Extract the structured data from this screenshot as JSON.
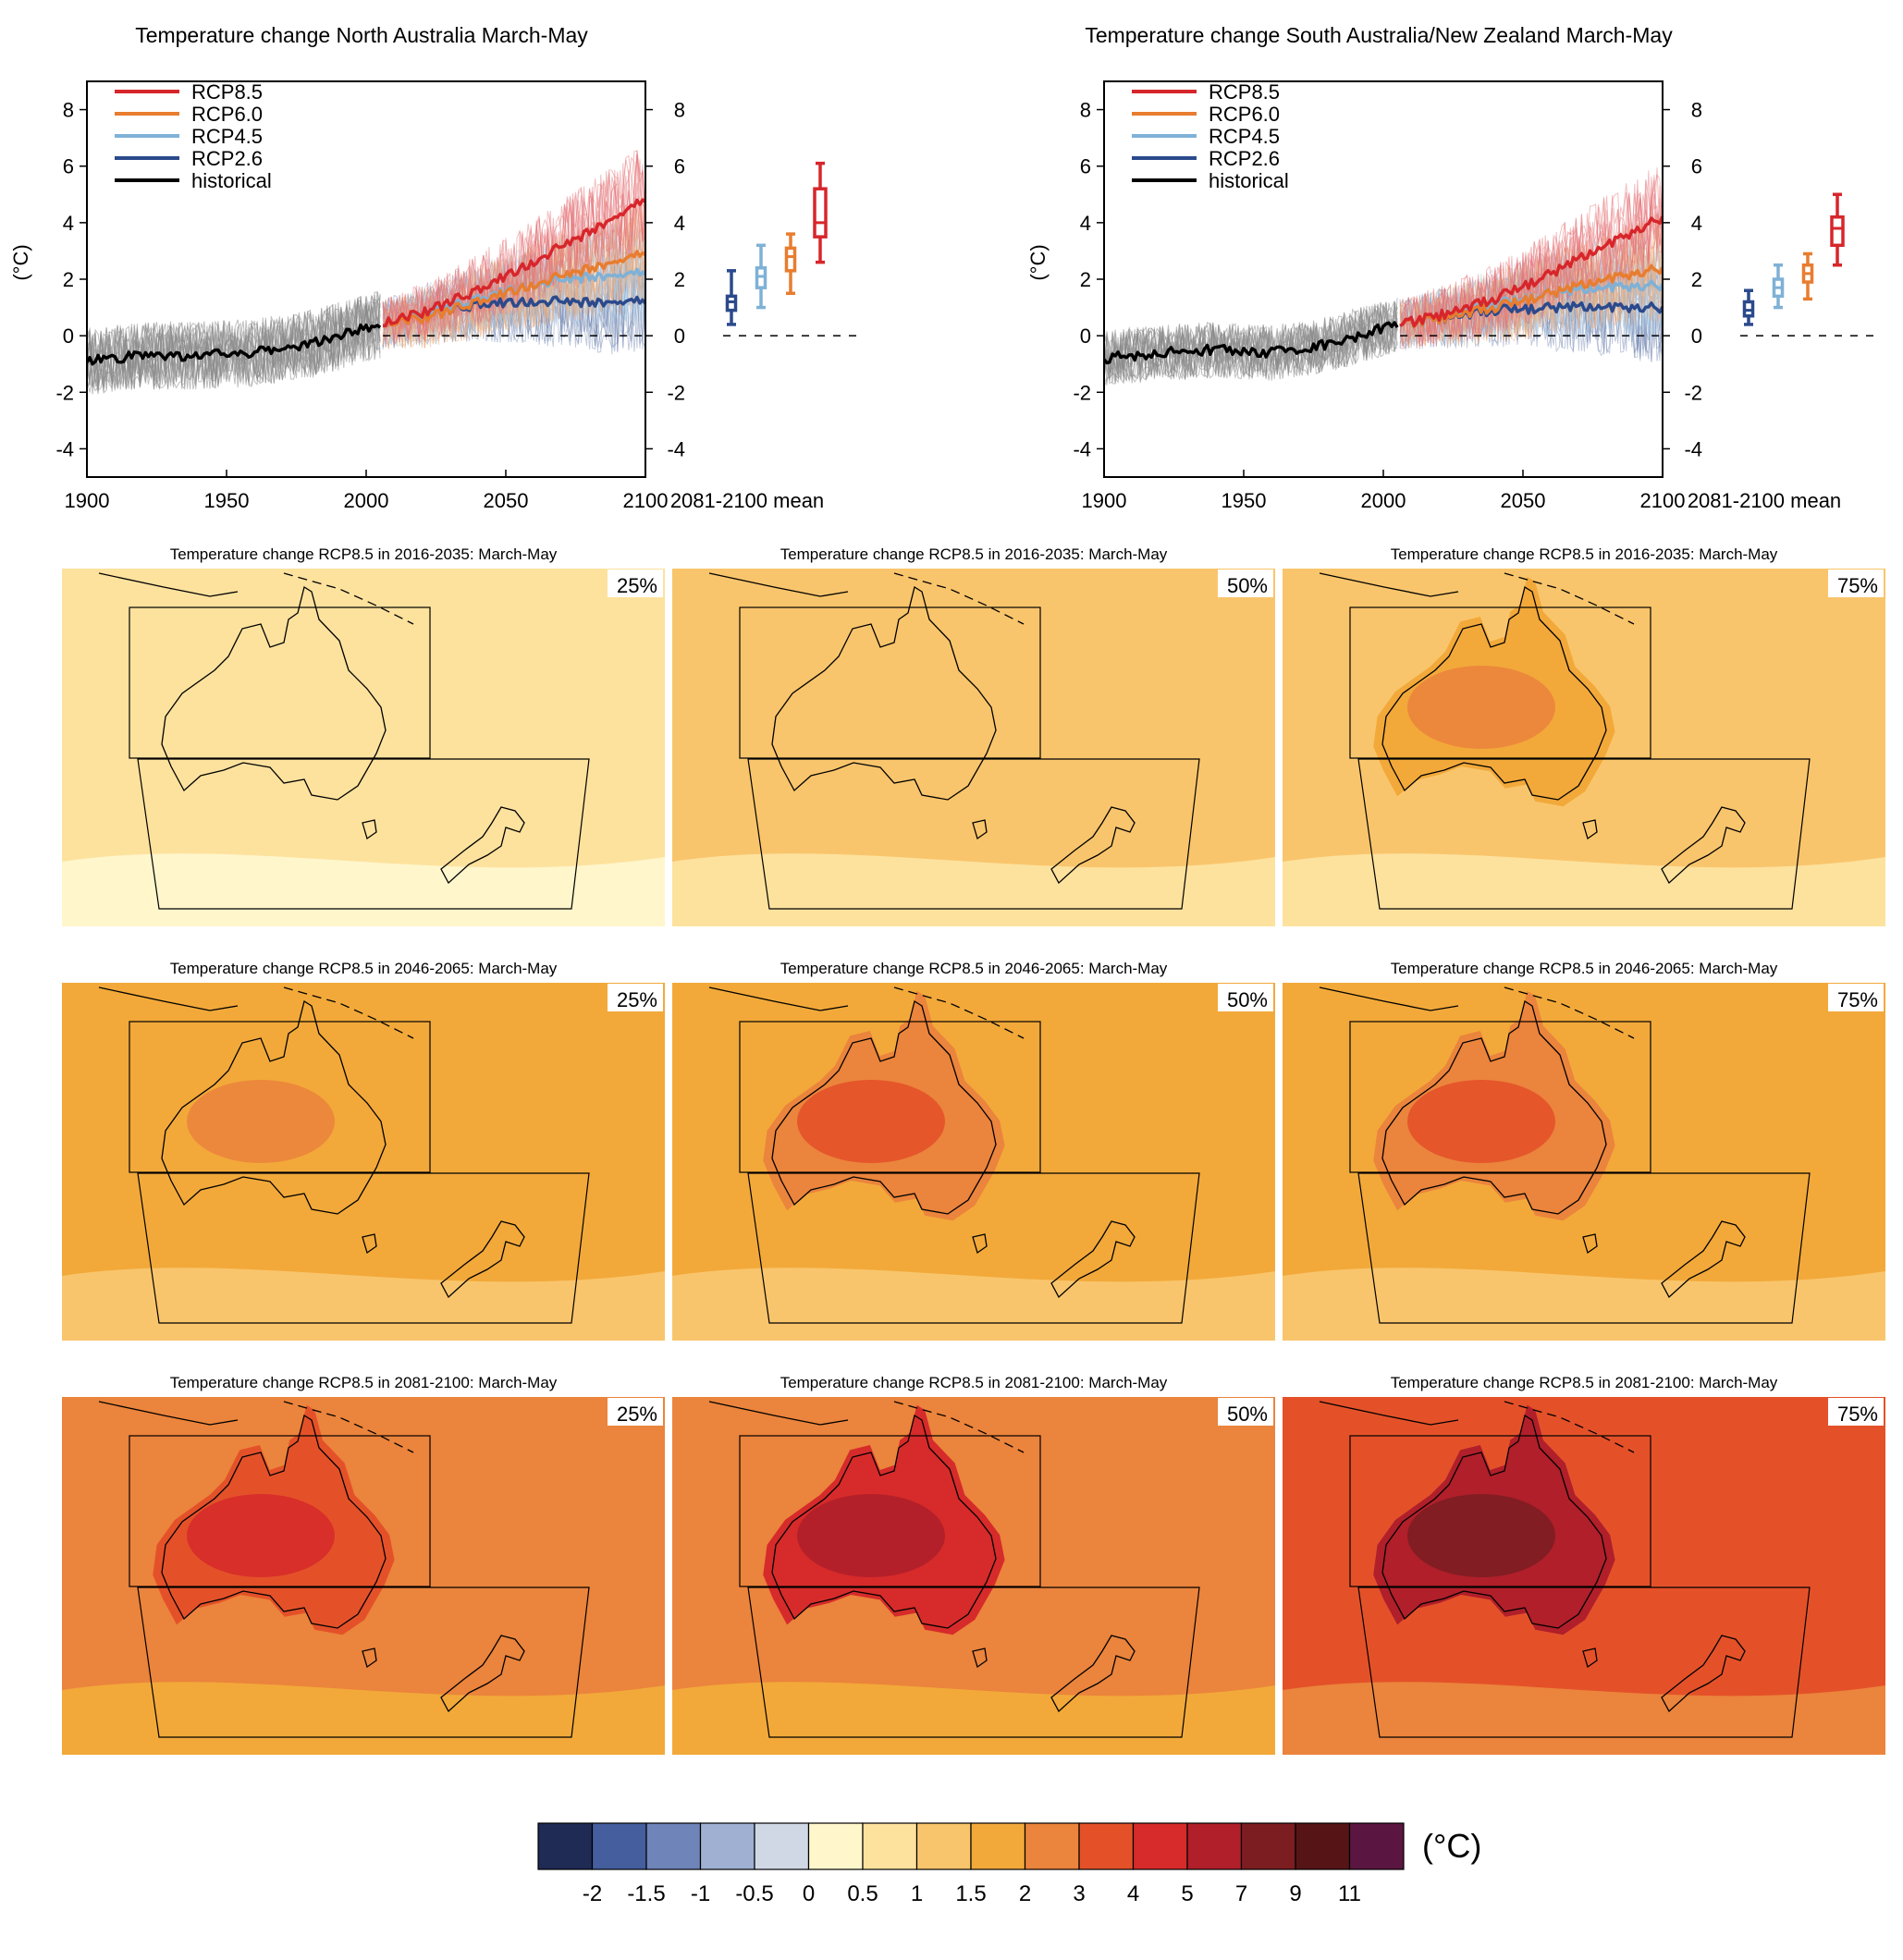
{
  "chart_data": [
    {
      "type": "line",
      "title": "Temperature change North Australia March-May",
      "ylabel": "(°C)",
      "xlabel": "",
      "xlim": [
        1900,
        2100
      ],
      "ylim": [
        -5,
        9
      ],
      "x_ticks": [
        1900,
        1950,
        2000,
        2050,
        2100
      ],
      "y_ticks": [
        -4,
        -2,
        0,
        2,
        4,
        6,
        8
      ],
      "legend_position": "top-left",
      "series": [
        {
          "name": "RCP8.5",
          "color": "#d7262b",
          "x": [
            2006,
            2020,
            2040,
            2060,
            2080,
            2100
          ],
          "values": [
            0.4,
            0.8,
            1.6,
            2.6,
            3.7,
            4.8
          ]
        },
        {
          "name": "RCP6.0",
          "color": "#e87d2f",
          "x": [
            2006,
            2020,
            2040,
            2060,
            2080,
            2100
          ],
          "values": [
            0.4,
            0.6,
            1.2,
            1.8,
            2.4,
            2.9
          ]
        },
        {
          "name": "RCP4.5",
          "color": "#7fb1d6",
          "x": [
            2006,
            2020,
            2040,
            2060,
            2080,
            2100
          ],
          "values": [
            0.4,
            0.7,
            1.3,
            1.8,
            2.1,
            2.2
          ]
        },
        {
          "name": "RCP2.6",
          "color": "#2b4a8c",
          "x": [
            2006,
            2020,
            2040,
            2060,
            2080,
            2100
          ],
          "values": [
            0.4,
            0.7,
            1.1,
            1.2,
            1.2,
            1.2
          ]
        },
        {
          "name": "historical",
          "color": "#000000",
          "x": [
            1900,
            1920,
            1940,
            1960,
            1980,
            2005
          ],
          "values": [
            -0.9,
            -0.7,
            -0.7,
            -0.6,
            -0.3,
            0.4
          ]
        }
      ],
      "mean_2081_2100": {
        "label": "2081-2100 mean",
        "boxes": [
          {
            "name": "RCP2.6",
            "color": "#2b4a8c",
            "min": 0.4,
            "q1": 0.9,
            "median": 1.2,
            "q3": 1.4,
            "max": 2.3
          },
          {
            "name": "RCP4.5",
            "color": "#7fb1d6",
            "min": 1.0,
            "q1": 1.7,
            "median": 2.1,
            "q3": 2.4,
            "max": 3.2
          },
          {
            "name": "RCP6.0",
            "color": "#e87d2f",
            "min": 1.5,
            "q1": 2.3,
            "median": 2.8,
            "q3": 3.1,
            "max": 3.6
          },
          {
            "name": "RCP8.5",
            "color": "#d7262b",
            "min": 2.6,
            "q1": 3.5,
            "median": 4.0,
            "q3": 5.2,
            "max": 6.1
          }
        ]
      }
    },
    {
      "type": "line",
      "title": "Temperature change South Australia/New Zealand March-May",
      "ylabel": "(°C)",
      "xlabel": "",
      "xlim": [
        1900,
        2100
      ],
      "ylim": [
        -5,
        9
      ],
      "x_ticks": [
        1900,
        1950,
        2000,
        2050,
        2100
      ],
      "y_ticks": [
        -4,
        -2,
        0,
        2,
        4,
        6,
        8
      ],
      "legend_position": "top-left",
      "series": [
        {
          "name": "RCP8.5",
          "color": "#d7262b",
          "x": [
            2006,
            2020,
            2040,
            2060,
            2080,
            2100
          ],
          "values": [
            0.4,
            0.7,
            1.3,
            2.2,
            3.2,
            4.2
          ]
        },
        {
          "name": "RCP6.0",
          "color": "#e87d2f",
          "x": [
            2006,
            2020,
            2040,
            2060,
            2080,
            2100
          ],
          "values": [
            0.4,
            0.6,
            1.0,
            1.5,
            2.0,
            2.4
          ]
        },
        {
          "name": "RCP4.5",
          "color": "#7fb1d6",
          "x": [
            2006,
            2020,
            2040,
            2060,
            2080,
            2100
          ],
          "values": [
            0.4,
            0.6,
            1.1,
            1.5,
            1.7,
            1.8
          ]
        },
        {
          "name": "RCP2.6",
          "color": "#2b4a8c",
          "x": [
            2006,
            2020,
            2040,
            2060,
            2080,
            2100
          ],
          "values": [
            0.4,
            0.6,
            0.9,
            1.0,
            1.0,
            1.0
          ]
        },
        {
          "name": "historical",
          "color": "#000000",
          "x": [
            1900,
            1920,
            1940,
            1960,
            1980,
            2005
          ],
          "values": [
            -0.8,
            -0.6,
            -0.5,
            -0.6,
            -0.3,
            0.4
          ]
        }
      ],
      "mean_2081_2100": {
        "label": "2081-2100 mean",
        "boxes": [
          {
            "name": "RCP2.6",
            "color": "#2b4a8c",
            "min": 0.4,
            "q1": 0.7,
            "median": 0.9,
            "q3": 1.2,
            "max": 1.6
          },
          {
            "name": "RCP4.5",
            "color": "#7fb1d6",
            "min": 1.0,
            "q1": 1.4,
            "median": 1.7,
            "q3": 2.0,
            "max": 2.5
          },
          {
            "name": "RCP6.0",
            "color": "#e87d2f",
            "min": 1.3,
            "q1": 1.9,
            "median": 2.2,
            "q3": 2.5,
            "max": 2.9
          },
          {
            "name": "RCP8.5",
            "color": "#d7262b",
            "min": 2.5,
            "q1": 3.2,
            "median": 3.8,
            "q3": 4.2,
            "max": 5.0
          }
        ]
      }
    },
    {
      "type": "heatmap",
      "description_rows": [
        "2016-2035",
        "2046-2065",
        "2081-2100"
      ],
      "maps": [
        {
          "title": "Temperature change RCP8.5 in 2016-2035: March-May",
          "percentile": "25%",
          "background_level": 0.5,
          "land_level": 0.5
        },
        {
          "title": "Temperature change RCP8.5 in 2016-2035: March-May",
          "percentile": "50%",
          "background_level": 1,
          "land_level": 1
        },
        {
          "title": "Temperature change RCP8.5 in 2016-2035: March-May",
          "percentile": "75%",
          "background_level": 1,
          "land_level": 1.5
        },
        {
          "title": "Temperature change RCP8.5 in 2046-2065: March-May",
          "percentile": "25%",
          "background_level": 1.5,
          "land_level": 1.5
        },
        {
          "title": "Temperature change RCP8.5 in 2046-2065: March-May",
          "percentile": "50%",
          "background_level": 1.5,
          "land_level": 2
        },
        {
          "title": "Temperature change RCP8.5 in 2046-2065: March-May",
          "percentile": "75%",
          "background_level": 1.5,
          "land_level": 2
        },
        {
          "title": "Temperature change RCP8.5 in 2081-2100: March-May",
          "percentile": "25%",
          "background_level": 2,
          "land_level": 3
        },
        {
          "title": "Temperature change RCP8.5 in 2081-2100: March-May",
          "percentile": "50%",
          "background_level": 2,
          "land_level": 4
        },
        {
          "title": "Temperature change RCP8.5 in 2081-2100: March-May",
          "percentile": "75%",
          "background_level": 3,
          "land_level": 5
        }
      ],
      "colorbar": {
        "unit": "(°C)",
        "tick_labels": [
          "-2",
          "-1.5",
          "-1",
          "-0.5",
          "0",
          "0.5",
          "1",
          "1.5",
          "2",
          "3",
          "4",
          "5",
          "7",
          "9",
          "11"
        ],
        "colors": [
          "#1f2a55",
          "#445e9e",
          "#6f85b9",
          "#9fb0d3",
          "#d0d8e6",
          "#fff6cc",
          "#fde29e",
          "#f9c56c",
          "#f2a93a",
          "#eb843c",
          "#e45129",
          "#d62b2a",
          "#b01f2a",
          "#7c1d22",
          "#561416",
          "#5a1640"
        ]
      }
    }
  ]
}
